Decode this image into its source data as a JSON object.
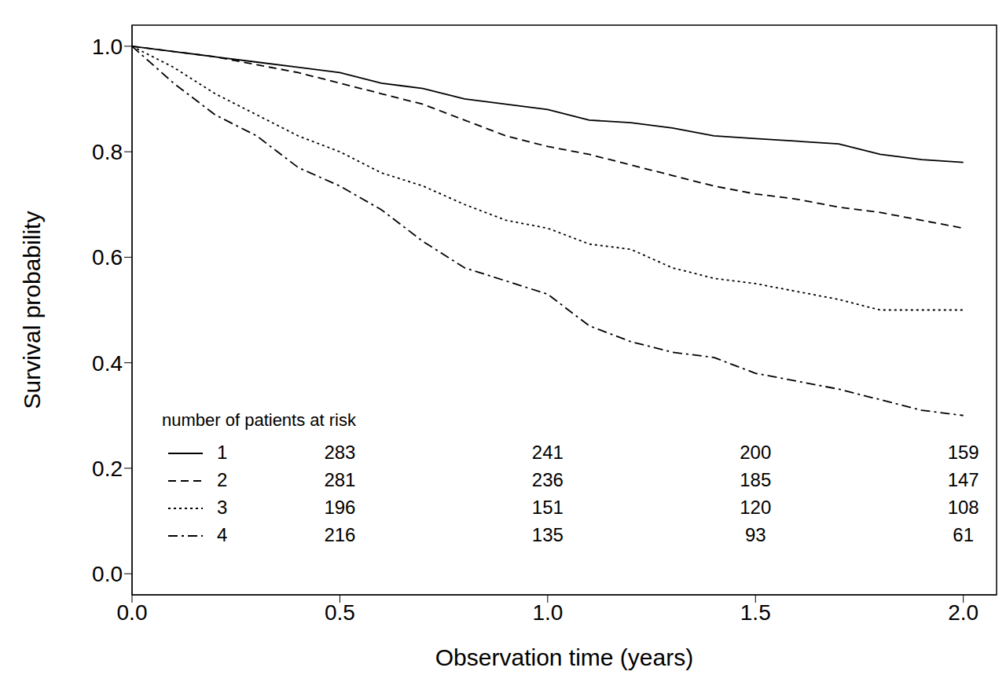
{
  "chart_data": {
    "type": "line",
    "title": null,
    "x_label": "Observation time (years)",
    "y_label": "Survival probability",
    "x": [
      0,
      0.1,
      0.2,
      0.3,
      0.4,
      0.5,
      0.6,
      0.7,
      0.8,
      0.9,
      1.0,
      1.1,
      1.2,
      1.3,
      1.4,
      1.5,
      1.6,
      1.7,
      1.8,
      1.9,
      2.0
    ],
    "series": [
      {
        "name": "1",
        "color": "#000000",
        "line_style": "solid",
        "values": [
          1,
          0.99,
          0.98,
          0.97,
          0.96,
          0.95,
          0.93,
          0.92,
          0.9,
          0.89,
          0.88,
          0.86,
          0.855,
          0.845,
          0.83,
          0.825,
          0.82,
          0.815,
          0.795,
          0.785,
          0.78
        ],
        "at_risk": [
          283,
          241,
          200,
          159
        ]
      },
      {
        "name": "2",
        "color": "#000000",
        "line_style": "dashed",
        "values": [
          1,
          0.99,
          0.98,
          0.965,
          0.95,
          0.93,
          0.91,
          0.89,
          0.86,
          0.83,
          0.81,
          0.795,
          0.775,
          0.755,
          0.735,
          0.72,
          0.71,
          0.695,
          0.685,
          0.67,
          0.655
        ],
        "at_risk": [
          281,
          236,
          185,
          147
        ]
      },
      {
        "name": "3",
        "color": "#000000",
        "line_style": "dotted",
        "values": [
          1,
          0.96,
          0.91,
          0.87,
          0.83,
          0.8,
          0.76,
          0.735,
          0.7,
          0.67,
          0.655,
          0.625,
          0.615,
          0.58,
          0.56,
          0.55,
          0.535,
          0.52,
          0.5,
          0.5,
          0.5
        ],
        "at_risk": [
          196,
          151,
          120,
          108
        ]
      },
      {
        "name": "4",
        "color": "#000000",
        "line_style": "dashdot",
        "values": [
          1,
          0.93,
          0.87,
          0.83,
          0.77,
          0.735,
          0.69,
          0.63,
          0.58,
          0.555,
          0.53,
          0.47,
          0.44,
          0.42,
          0.41,
          0.38,
          0.365,
          0.35,
          0.33,
          0.31,
          0.3
        ],
        "at_risk": [
          216,
          135,
          93,
          61
        ]
      }
    ],
    "risk_table": {
      "title": "number of patients at risk",
      "times": [
        0.5,
        1.0,
        1.5,
        2.0
      ]
    },
    "xlim": [
      0,
      2.08
    ],
    "ylim": [
      -0.04,
      1.04
    ],
    "xticks": [
      {
        "value": 0,
        "label": "0.0"
      },
      0.5,
      {
        "value": 1,
        "label": "1.0"
      },
      1.5,
      {
        "value": 2,
        "label": "2.0"
      }
    ],
    "yticks": [
      {
        "value": 0,
        "label": "0.0"
      },
      0.2,
      0.4,
      0.6,
      0.8,
      {
        "value": 1,
        "label": "1.0"
      }
    ],
    "grid": false,
    "legend": false
  }
}
